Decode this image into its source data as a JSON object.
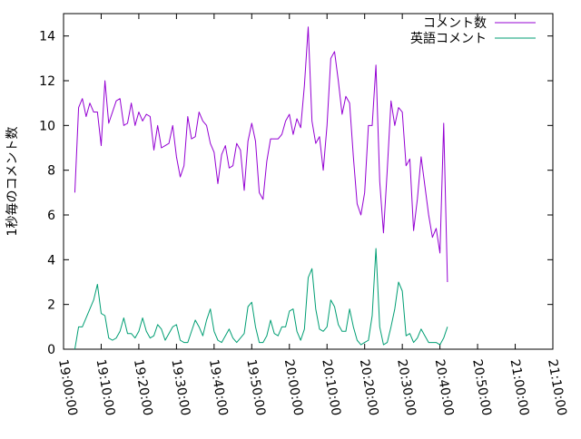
{
  "chart_data": {
    "type": "line",
    "title": "",
    "xlabel": "",
    "ylabel": "1秒毎のコメント数",
    "xlim": [
      "19:00:00",
      "21:10:00"
    ],
    "ylim": [
      0,
      15
    ],
    "x_tick_labels": [
      "19:00:00",
      "19:10:00",
      "19:20:00",
      "19:30:00",
      "19:40:00",
      "19:50:00",
      "20:00:00",
      "20:10:00",
      "20:20:00",
      "20:30:00",
      "20:40:00",
      "20:50:00",
      "21:00:00",
      "21:10:00"
    ],
    "y_ticks": [
      0,
      2,
      4,
      6,
      8,
      10,
      12,
      14
    ],
    "grid": false,
    "legend_position": "top-right",
    "x_sampling_seconds": 60,
    "x_start": "19:03:00",
    "series": [
      {
        "name": "コメント数",
        "color": "#9400d3",
        "values": [
          7.0,
          10.8,
          11.2,
          10.4,
          11.0,
          10.6,
          10.6,
          9.1,
          12.0,
          10.1,
          10.6,
          11.1,
          11.2,
          10.0,
          10.1,
          11.0,
          10.0,
          10.6,
          10.2,
          10.5,
          10.4,
          8.9,
          10.0,
          9.0,
          9.1,
          9.2,
          10.0,
          8.6,
          7.7,
          8.2,
          10.4,
          9.4,
          9.5,
          10.6,
          10.2,
          10.0,
          9.2,
          8.8,
          7.4,
          8.7,
          9.1,
          8.1,
          8.2,
          9.2,
          8.9,
          7.1,
          9.3,
          10.1,
          9.3,
          7.0,
          6.7,
          8.4,
          9.4,
          9.4,
          9.4,
          9.6,
          10.2,
          10.5,
          9.6,
          10.3,
          9.9,
          11.8,
          14.4,
          10.2,
          9.2,
          9.5,
          8.0,
          10.0,
          13.0,
          13.3,
          12.0,
          10.5,
          11.3,
          11.0,
          8.6,
          6.5,
          6.0,
          7.0,
          10.0,
          10.0,
          12.7,
          7.5,
          5.2,
          8.0,
          11.1,
          10.0,
          10.8,
          10.6,
          8.2,
          8.5,
          5.3,
          6.7,
          8.6,
          7.3,
          6.0,
          5.0,
          5.4,
          4.3,
          10.1,
          3.0
        ]
      },
      {
        "name": "英語コメント",
        "color": "#009e73",
        "values": [
          0.0,
          1.0,
          1.0,
          1.4,
          1.8,
          2.2,
          2.9,
          1.6,
          1.5,
          0.5,
          0.4,
          0.5,
          0.8,
          1.4,
          0.7,
          0.7,
          0.5,
          0.8,
          1.4,
          0.8,
          0.5,
          0.6,
          1.1,
          0.9,
          0.4,
          0.7,
          1.0,
          1.1,
          0.4,
          0.3,
          0.3,
          0.8,
          1.3,
          1.0,
          0.6,
          1.3,
          1.8,
          0.8,
          0.4,
          0.3,
          0.6,
          0.9,
          0.5,
          0.3,
          0.5,
          0.7,
          1.9,
          2.1,
          1.0,
          0.3,
          0.3,
          0.6,
          1.3,
          0.7,
          0.6,
          1.0,
          1.0,
          1.7,
          1.8,
          0.8,
          0.4,
          0.9,
          3.2,
          3.6,
          1.8,
          0.9,
          0.8,
          1.0,
          2.2,
          1.9,
          1.1,
          0.8,
          0.8,
          1.8,
          1.0,
          0.4,
          0.2,
          0.3,
          0.4,
          1.5,
          4.5,
          1.0,
          0.2,
          0.3,
          1.0,
          1.8,
          3.0,
          2.6,
          0.6,
          0.7,
          0.3,
          0.5,
          0.9,
          0.6,
          0.3,
          0.3,
          0.3,
          0.2,
          0.5,
          1.0
        ]
      }
    ]
  }
}
